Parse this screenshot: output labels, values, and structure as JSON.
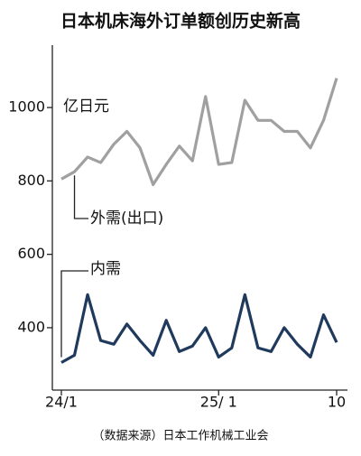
{
  "chart_data": {
    "type": "line",
    "title": "日本机床海外订单额创历史新高",
    "y_unit": "亿日元",
    "source": "（数据来源）日本工作机械工业会",
    "categories": [
      "24/1",
      null,
      null,
      null,
      null,
      null,
      null,
      null,
      null,
      null,
      null,
      null,
      "25/ 1",
      null,
      null,
      null,
      null,
      null,
      null,
      null,
      null,
      "10"
    ],
    "series": [
      {
        "name": "外需(出口)",
        "color": "#a0a0a0",
        "values": [
          805,
          825,
          865,
          850,
          900,
          935,
          890,
          790,
          845,
          895,
          855,
          1030,
          845,
          850,
          1020,
          965,
          965,
          935,
          935,
          890,
          965,
          1080
        ]
      },
      {
        "name": "内需",
        "color": "#1f3a5c",
        "values": [
          305,
          325,
          490,
          365,
          355,
          410,
          365,
          325,
          420,
          335,
          350,
          400,
          320,
          345,
          490,
          345,
          335,
          400,
          355,
          320,
          435,
          360
        ]
      }
    ],
    "ylim": [
      230,
      1170
    ],
    "yticks": [
      400,
      600,
      800,
      1000
    ],
    "grid": false
  }
}
